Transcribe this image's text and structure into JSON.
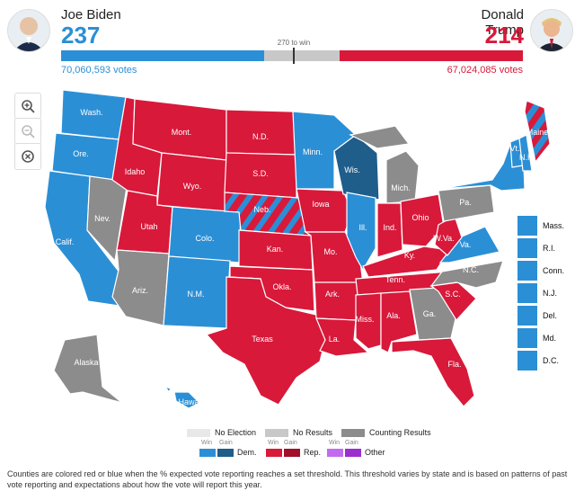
{
  "colors": {
    "dem_win": "#2b8fd6",
    "dem_gain": "#1f5d8a",
    "rep_win": "#d8193a",
    "rep_gain": "#a10f2b",
    "other_win": "#c26bf0",
    "other_gain": "#9a2ecf",
    "no_election": "#e8e8e8",
    "no_results": "#c8c8c8",
    "counting": "#8c8c8c"
  },
  "biden": {
    "name": "Joe Biden",
    "ev": "237",
    "votes": "70,060,593 votes"
  },
  "trump": {
    "name": "Donald Trump",
    "ev": "214",
    "votes": "67,024,085 votes"
  },
  "target_label": "270 to win",
  "ev_bar": {
    "total": 538,
    "target": 270
  },
  "zoom_icons": [
    "zoom-in-icon",
    "zoom-out-icon",
    "reset-icon"
  ],
  "states": {
    "wa": "Wash.",
    "or": "Ore.",
    "ca": "Calif.",
    "nv": "Nev.",
    "id": "Idaho",
    "mt": "Mont.",
    "wy": "Wyo.",
    "ut": "Utah",
    "az": "Ariz.",
    "co": "Colo.",
    "nm": "N.M.",
    "nd": "N.D.",
    "sd": "S.D.",
    "ne": "Neb.",
    "ks": "Kan.",
    "ok": "Okla.",
    "tx": "Texas",
    "mn": "Minn.",
    "ia": "Iowa",
    "mo": "Mo.",
    "ar": "Ark.",
    "la": "La.",
    "wi": "Wis.",
    "il": "Ill.",
    "mi": "Mich.",
    "in": "Ind.",
    "oh": "Ohio",
    "ky": "Ky.",
    "tn": "Tenn.",
    "ms": "Miss.",
    "al": "Ala.",
    "ga": "Ga.",
    "fl": "Fla.",
    "sc": "S.C.",
    "nc": "N.C.",
    "va": "Va.",
    "wv": "W.Va.",
    "pa": "Pa.",
    "ny": "N.Y.",
    "vt": "Vt.",
    "nh": "N.H.",
    "me": "Maine",
    "ak": "Alaska",
    "hi": "Hawaii"
  },
  "small_states": [
    "Mass.",
    "R.I.",
    "Conn.",
    "N.J.",
    "Del.",
    "Md.",
    "D.C."
  ],
  "legend": {
    "no_election": "No Election",
    "no_results": "No Results",
    "counting": "Counting Results",
    "win": "Win",
    "gain": "Gain",
    "dem": "Dem.",
    "rep": "Rep.",
    "other": "Other"
  },
  "footnote": "Counties are colored red or blue when the % expected vote reporting reaches a set threshold. This threshold varies by state and is based on patterns of past vote reporting and expectations about how the vote will report this year."
}
